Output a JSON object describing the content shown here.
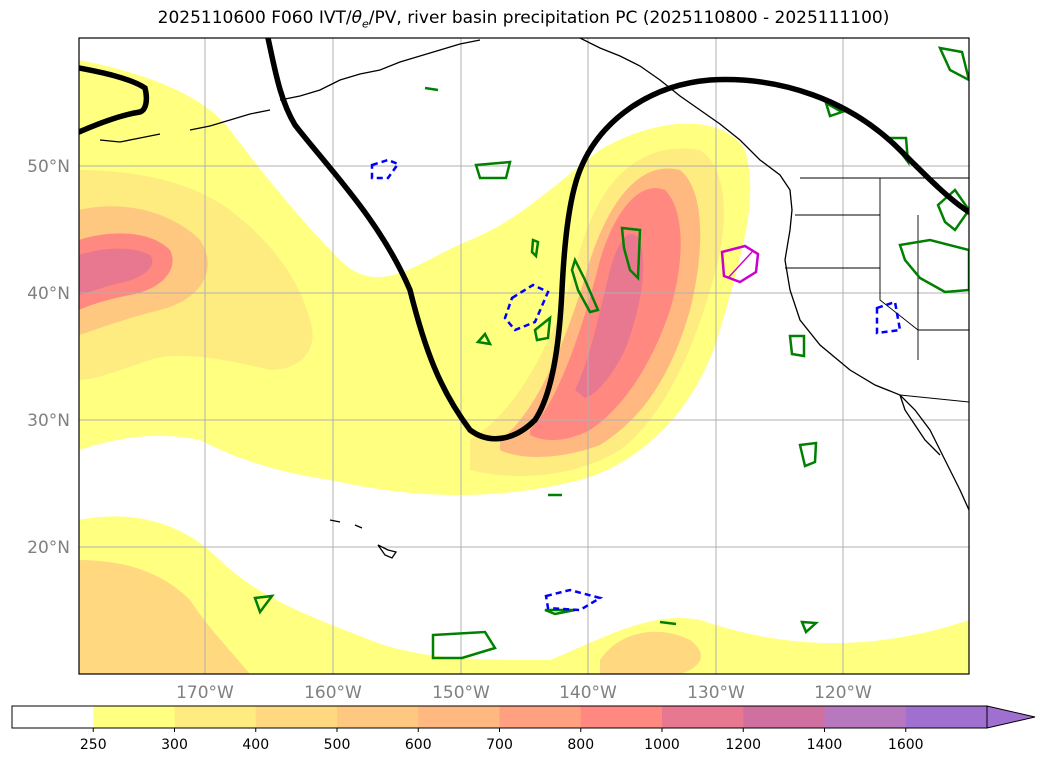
{
  "title": {
    "prefix": "2025110600 F060 IVT/",
    "theta": "θ",
    "theta_sub": "e",
    "suffix": "/PV, river basin precipitation PC (2025110800 - 2025111100)"
  },
  "map": {
    "lon_labels": [
      "170°W",
      "160°W",
      "150°W",
      "140°W",
      "130°W",
      "120°W"
    ],
    "lat_labels": [
      "50°N",
      "40°N",
      "30°N",
      "20°N"
    ],
    "label_color": "#808080",
    "grid_color": "#b0b0b0"
  },
  "colorbar": {
    "ticks": [
      "250",
      "300",
      "400",
      "500",
      "600",
      "700",
      "800",
      "1000",
      "1200",
      "1400",
      "1600"
    ],
    "colors": [
      "#ffffff",
      "#ffff80",
      "#ffec80",
      "#ffd880",
      "#ffc880",
      "#ffb880",
      "#ffa080",
      "#ff8880",
      "#e87890",
      "#d070a0",
      "#b878c0",
      "#a070d0"
    ]
  },
  "contour_colors": {
    "pv": "#000000",
    "precip_pos": "#008000",
    "precip_neg": "#0000ff",
    "precip_alt": "#cc00cc"
  }
}
